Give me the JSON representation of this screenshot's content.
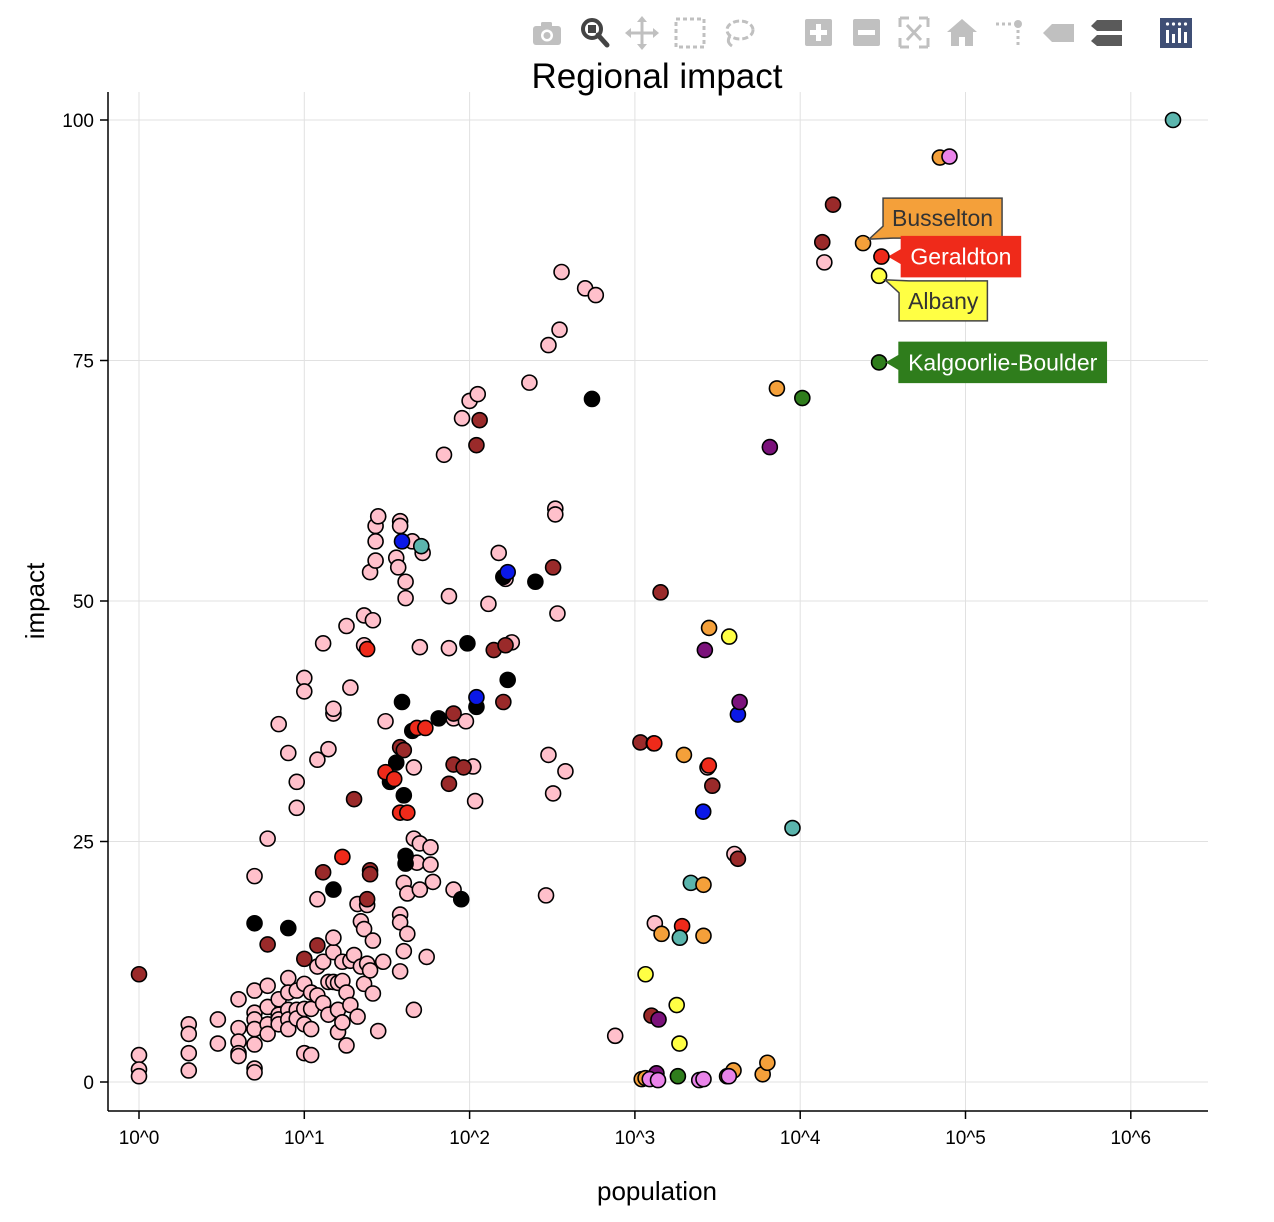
{
  "modebar": {
    "buttons": [
      {
        "name": "camera-icon",
        "active": false
      },
      {
        "name": "zoom-icon",
        "active": true
      },
      {
        "name": "pan-icon",
        "active": false
      },
      {
        "name": "box-select-icon",
        "active": false
      },
      {
        "name": "lasso-select-icon",
        "active": false
      },
      {
        "name": "zoom-in-icon",
        "active": false
      },
      {
        "name": "zoom-out-icon",
        "active": false
      },
      {
        "name": "autoscale-icon",
        "active": false
      },
      {
        "name": "reset-axes-icon",
        "active": false
      },
      {
        "name": "spike-lines-icon",
        "active": false
      },
      {
        "name": "hover-closest-icon",
        "active": false
      },
      {
        "name": "hover-compare-icon",
        "active": false
      },
      {
        "name": "plotly-logo-icon",
        "active": false
      }
    ],
    "colors": {
      "inactive": "#c0c0c0",
      "active": "#444444",
      "dark": "#5a5a5a",
      "logo_bg": "#3f4f75"
    }
  },
  "chart_data": {
    "type": "scatter",
    "title": "Regional impact",
    "xlabel": "population",
    "ylabel": "impact",
    "xscale": "log",
    "xlim": [
      0.8,
      2800000
    ],
    "ylim": [
      -3,
      103
    ],
    "xticks": [
      1,
      10,
      100,
      1000,
      10000,
      100000,
      1000000
    ],
    "xtick_labels": [
      "10^0",
      "10^1",
      "10^2",
      "10^3",
      "10^4",
      "10^5",
      "10^6"
    ],
    "yticks": [
      0,
      25,
      50,
      75,
      100
    ],
    "ytick_labels": [
      "0",
      "25",
      "50",
      "75",
      "100"
    ],
    "grid": true,
    "colors": {
      "pink": "#ffc0cb",
      "brown": "#9a2a2a",
      "black": "#000000",
      "red": "#ef2a1a",
      "blue": "#0a18e8",
      "teal": "#5bb5ad",
      "orange": "#f4a03a",
      "yellow": "#ffff44",
      "purple": "#7b127b",
      "green": "#2f7d1c",
      "violet": "#ea84ea"
    },
    "points": {
      "pink": [
        [
          1,
          2.8
        ],
        [
          1,
          1.3
        ],
        [
          1,
          0.6
        ],
        [
          2,
          6
        ],
        [
          2,
          5
        ],
        [
          2,
          3
        ],
        [
          2,
          1.2
        ],
        [
          3,
          6.5
        ],
        [
          3,
          4
        ],
        [
          4,
          8.6
        ],
        [
          4,
          5.6
        ],
        [
          4,
          4.2
        ],
        [
          4,
          3
        ],
        [
          4,
          2.7
        ],
        [
          5,
          9.5
        ],
        [
          5,
          7.2
        ],
        [
          5,
          6.5
        ],
        [
          5,
          5.5
        ],
        [
          5,
          3.9
        ],
        [
          5,
          1.4
        ],
        [
          5,
          1
        ],
        [
          5,
          21.4
        ],
        [
          6,
          10
        ],
        [
          6,
          7.8
        ],
        [
          6,
          6
        ],
        [
          6,
          5
        ],
        [
          6,
          25.3
        ],
        [
          7,
          8.6
        ],
        [
          7,
          7
        ],
        [
          7,
          6.5
        ],
        [
          7,
          6
        ],
        [
          7,
          37.2
        ],
        [
          8,
          10.8
        ],
        [
          8,
          9.3
        ],
        [
          8,
          7.5
        ],
        [
          8,
          6.5
        ],
        [
          8,
          5.5
        ],
        [
          8,
          34.2
        ],
        [
          9,
          9.5
        ],
        [
          9,
          7.5
        ],
        [
          9,
          6.6
        ],
        [
          9,
          31.2
        ],
        [
          9,
          28.5
        ],
        [
          10,
          10.2
        ],
        [
          10,
          7.6
        ],
        [
          10,
          6
        ],
        [
          10,
          3
        ],
        [
          10,
          42
        ],
        [
          10,
          40.6
        ],
        [
          11,
          9.3
        ],
        [
          11,
          7.6
        ],
        [
          11,
          5.5
        ],
        [
          11,
          2.8
        ],
        [
          12,
          19
        ],
        [
          12,
          12
        ],
        [
          12,
          9
        ],
        [
          12,
          33.5
        ],
        [
          13,
          12.5
        ],
        [
          13,
          8.2
        ],
        [
          13,
          45.6
        ],
        [
          14,
          10.4
        ],
        [
          14,
          7
        ],
        [
          14,
          34.6
        ],
        [
          15,
          13.5
        ],
        [
          15,
          10.4
        ],
        [
          15,
          15
        ],
        [
          15,
          38.3
        ],
        [
          15,
          38.8
        ],
        [
          16,
          7.5
        ],
        [
          16,
          5.2
        ],
        [
          16,
          10.3
        ],
        [
          17,
          12.5
        ],
        [
          17,
          6.2
        ],
        [
          17,
          10.5
        ],
        [
          18,
          47.4
        ],
        [
          18,
          9.3
        ],
        [
          18,
          3.8
        ],
        [
          19,
          12.6
        ],
        [
          19,
          41
        ],
        [
          19,
          8
        ],
        [
          20,
          13.2
        ],
        [
          21,
          6.8
        ],
        [
          21,
          18.5
        ],
        [
          22,
          16.7
        ],
        [
          22,
          12
        ],
        [
          23,
          45.4
        ],
        [
          23,
          48.5
        ],
        [
          23,
          10.2
        ],
        [
          23,
          15.9
        ],
        [
          24,
          18.4
        ],
        [
          24,
          12.3
        ],
        [
          25,
          11.6
        ],
        [
          25,
          53
        ],
        [
          26,
          48
        ],
        [
          26,
          14.7
        ],
        [
          26,
          9.2
        ],
        [
          27,
          57.8
        ],
        [
          27,
          54.2
        ],
        [
          27,
          56.2
        ],
        [
          28,
          58.8
        ],
        [
          28,
          5.3
        ],
        [
          30,
          12.5
        ],
        [
          31,
          37.5
        ],
        [
          36,
          54.5
        ],
        [
          37,
          53.5
        ],
        [
          38,
          58.3
        ],
        [
          38,
          57.8
        ],
        [
          38,
          17.4
        ],
        [
          38,
          16.6
        ],
        [
          38,
          11.5
        ],
        [
          40,
          20.7
        ],
        [
          40,
          13.6
        ],
        [
          41,
          52
        ],
        [
          41,
          50.3
        ],
        [
          42,
          19.6
        ],
        [
          42,
          15.4
        ],
        [
          45,
          56.2
        ],
        [
          46,
          32.7
        ],
        [
          46,
          25.3
        ],
        [
          46,
          7.5
        ],
        [
          48,
          22.8
        ],
        [
          50,
          45.2
        ],
        [
          50,
          20
        ],
        [
          50,
          24.8
        ],
        [
          52,
          55
        ],
        [
          55,
          13
        ],
        [
          58,
          22.6
        ],
        [
          58,
          24.4
        ],
        [
          60,
          20.8
        ],
        [
          70,
          65.2
        ],
        [
          75,
          50.5
        ],
        [
          75,
          45.1
        ],
        [
          80,
          37.8
        ],
        [
          80,
          20
        ],
        [
          90,
          69
        ],
        [
          95,
          37.5
        ],
        [
          100,
          70.8
        ],
        [
          105,
          32.8
        ],
        [
          108,
          29.2
        ],
        [
          112,
          71.5
        ],
        [
          130,
          49.7
        ],
        [
          150,
          55
        ],
        [
          165,
          52.3
        ],
        [
          180,
          45.7
        ],
        [
          230,
          72.7
        ],
        [
          290,
          19.4
        ],
        [
          300,
          76.6
        ],
        [
          300,
          34
        ],
        [
          320,
          30
        ],
        [
          330,
          59.6
        ],
        [
          330,
          59
        ],
        [
          340,
          48.7
        ],
        [
          350,
          78.2
        ],
        [
          360,
          84.2
        ],
        [
          380,
          32.3
        ],
        [
          500,
          82.5
        ],
        [
          580,
          81.8
        ],
        [
          760,
          4.8
        ],
        [
          1320,
          16.5
        ],
        [
          2750,
          32.7
        ],
        [
          4000,
          23.7
        ],
        [
          14000,
          85.2
        ]
      ],
      "brown": [
        [
          1,
          11.2
        ],
        [
          6,
          14.3
        ],
        [
          10,
          12.8
        ],
        [
          12,
          14.2
        ],
        [
          13,
          21.8
        ],
        [
          20,
          29.4
        ],
        [
          24,
          19
        ],
        [
          25,
          22
        ],
        [
          25,
          21.6
        ],
        [
          38,
          34.8
        ],
        [
          40,
          34.5
        ],
        [
          75,
          31
        ],
        [
          80,
          38.3
        ],
        [
          80,
          33
        ],
        [
          92,
          32.7
        ],
        [
          110,
          66.2
        ],
        [
          115,
          68.8
        ],
        [
          140,
          44.9
        ],
        [
          160,
          39.5
        ],
        [
          165,
          45.4
        ],
        [
          320,
          53.5
        ],
        [
          1080,
          35.3
        ],
        [
          1300,
          35.2
        ],
        [
          1430,
          50.9
        ],
        [
          1260,
          6.9
        ],
        [
          2940,
          30.8
        ],
        [
          4200,
          23.2
        ],
        [
          13600,
          87.3
        ],
        [
          15800,
          91.2
        ]
      ],
      "black": [
        [
          5,
          16.5
        ],
        [
          8,
          16
        ],
        [
          15,
          20
        ],
        [
          33,
          31.2
        ],
        [
          36,
          33.2
        ],
        [
          39,
          39.5
        ],
        [
          40,
          29.8
        ],
        [
          41,
          23.5
        ],
        [
          41,
          22.7
        ],
        [
          45,
          36.5
        ],
        [
          65,
          37.8
        ],
        [
          89,
          19
        ],
        [
          97,
          45.6
        ],
        [
          110,
          39
        ],
        [
          160,
          52.5
        ],
        [
          170,
          41.8
        ],
        [
          250,
          52
        ],
        [
          550,
          71
        ]
      ],
      "red": [
        [
          17,
          23.4
        ],
        [
          24,
          45
        ],
        [
          31,
          32.2
        ],
        [
          35,
          31.5
        ],
        [
          38,
          28
        ],
        [
          42,
          28
        ],
        [
          48,
          36.8
        ],
        [
          54,
          36.8
        ],
        [
          1310,
          35.2
        ],
        [
          1930,
          16.2
        ],
        [
          2800,
          32.9
        ]
      ],
      "blue": [
        [
          39,
          56.2
        ],
        [
          110,
          40
        ],
        [
          170,
          53
        ],
        [
          2590,
          28.1
        ],
        [
          4200,
          38.2
        ]
      ],
      "teal": [
        [
          51,
          55.7
        ],
        [
          2180,
          20.7
        ],
        [
          1870,
          15
        ],
        [
          8980,
          26.4
        ],
        [
          1800000,
          100
        ]
      ],
      "orange": [
        [
          2600,
          20.5
        ],
        [
          1980,
          34
        ],
        [
          2810,
          47.2
        ],
        [
          1450,
          15.4
        ],
        [
          2600,
          15.2
        ],
        [
          1100,
          0.3
        ],
        [
          1160,
          0.4
        ],
        [
          3610,
          0.6
        ],
        [
          3950,
          1.2
        ],
        [
          5930,
          0.8
        ],
        [
          6330,
          2
        ],
        [
          7230,
          72.1
        ],
        [
          24000,
          87.2
        ],
        [
          70000,
          96.1
        ]
      ],
      "yellow": [
        [
          1160,
          11.2
        ],
        [
          1790,
          8
        ],
        [
          1860,
          4
        ],
        [
          3720,
          46.3
        ],
        [
          30000,
          83.8
        ]
      ],
      "purple": [
        [
          1390,
          6.5
        ],
        [
          1350,
          0.9
        ],
        [
          2650,
          44.9
        ],
        [
          4300,
          39.5
        ],
        [
          6550,
          66
        ]
      ],
      "green": [
        [
          1820,
          0.6
        ],
        [
          10300,
          71.1
        ],
        [
          30000,
          74.8
        ]
      ],
      "violet": [
        [
          1230,
          0.3
        ],
        [
          1380,
          0.2
        ],
        [
          2450,
          0.2
        ],
        [
          2600,
          0.3
        ],
        [
          3700,
          0.6
        ],
        [
          80000,
          96.2
        ]
      ]
    },
    "annotations": [
      {
        "text": "Busselton",
        "x": 24000,
        "y": 87.2,
        "bg": "#f4a03a",
        "border": "#444444",
        "text_color": "#333333",
        "side": "upper-right"
      },
      {
        "text": "Geraldton",
        "x": 31000,
        "y": 85.8,
        "bg": "#ef2a1a",
        "border": "#ef2a1a",
        "text_color": "#ffffff",
        "side": "right"
      },
      {
        "text": "Albany",
        "x": 30000,
        "y": 83.8,
        "bg": "#ffff44",
        "border": "#444444",
        "text_color": "#333333",
        "side": "lower-right"
      },
      {
        "text": "Kalgoorlie-Boulder",
        "x": 30000,
        "y": 74.8,
        "bg": "#2f7d1c",
        "border": "#2f7d1c",
        "text_color": "#ffffff",
        "side": "right"
      }
    ],
    "highlight_points": [
      {
        "color": "red",
        "x": 31000,
        "y": 85.8
      }
    ]
  }
}
